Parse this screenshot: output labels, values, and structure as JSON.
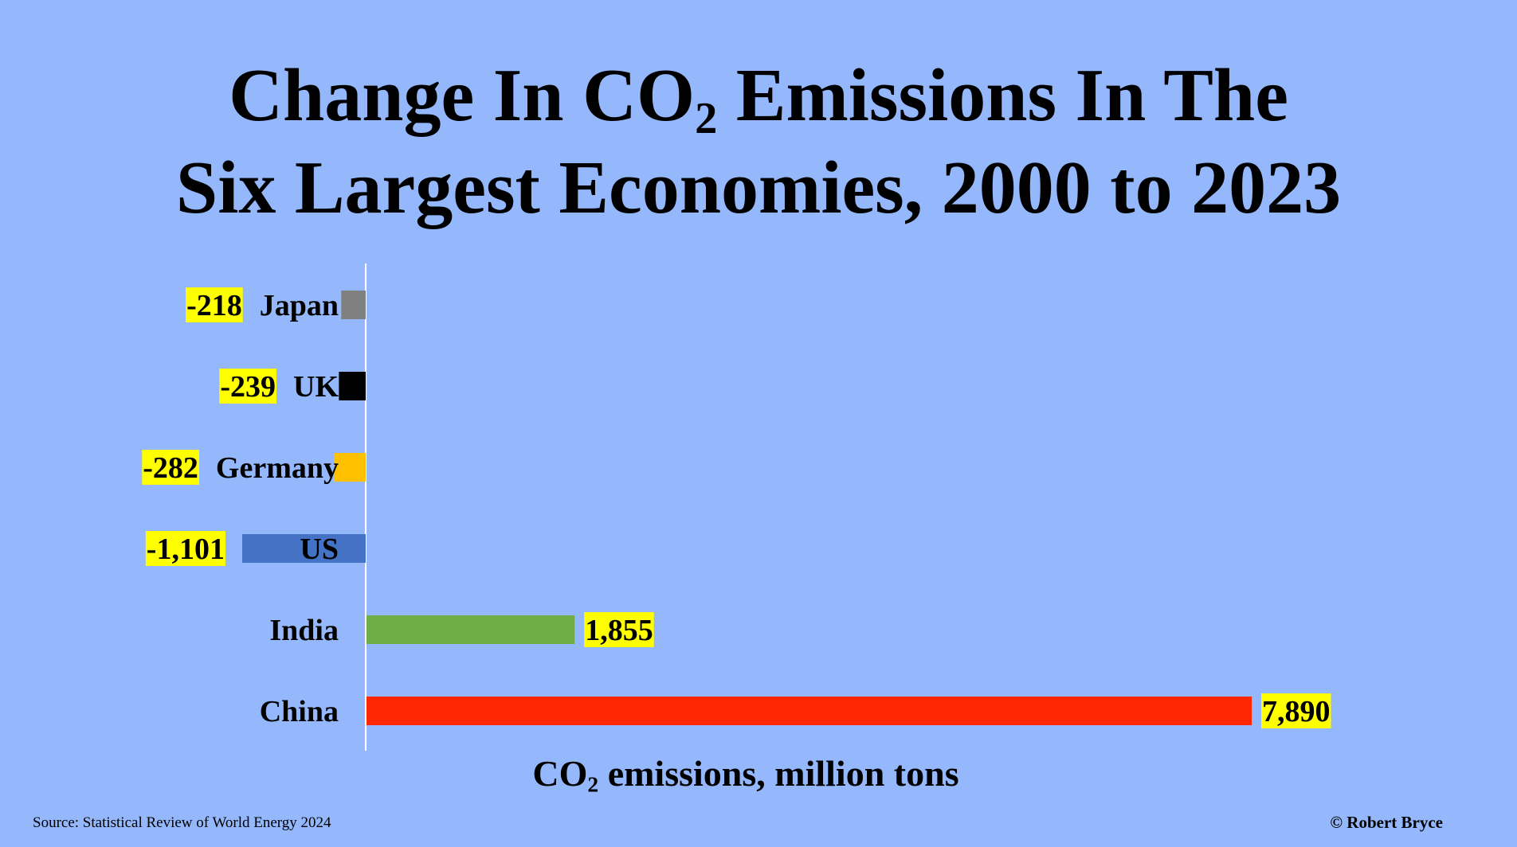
{
  "title": {
    "line1_pre": "Change In CO",
    "line1_sub": "2",
    "line1_post": " Emissions In The",
    "line2": "Six Largest Economies, 2000 to 2023"
  },
  "chart_data": {
    "type": "bar",
    "orientation": "horizontal",
    "categories": [
      "Japan",
      "UK",
      "Germany",
      "US",
      "India",
      "China"
    ],
    "values": [
      -218,
      -239,
      -282,
      -1101,
      1855,
      7890
    ],
    "value_labels": [
      "-218",
      "-239",
      "-282",
      "-1,101",
      "1,855",
      "7,890"
    ],
    "colors": [
      "#808080",
      "#000000",
      "#ffc000",
      "#4472c4",
      "#70ad47",
      "#ff2600"
    ],
    "label_highlight": "#ffff00",
    "xlabel_pre": "CO",
    "xlabel_sub": "2",
    "xlabel_post": " emissions, million tons",
    "grid": false,
    "legend": "none"
  },
  "source": "Source: Statistical Review of World Energy  2024",
  "credit": "© Robert Bryce"
}
